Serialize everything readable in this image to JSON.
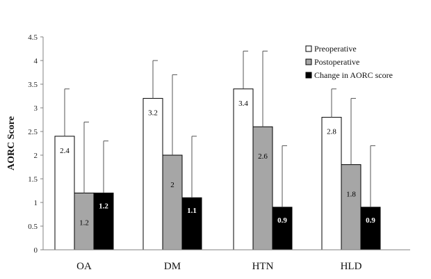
{
  "chart_data": {
    "type": "bar",
    "title": "",
    "xlabel": "",
    "ylabel": "AORC Score",
    "ylim": [
      0,
      4.5
    ],
    "yticks": [
      "0",
      "0.5",
      "1",
      "1.5",
      "2",
      "2.5",
      "3",
      "3.5",
      "4",
      "4.5"
    ],
    "categories": [
      "OA",
      "DM",
      "HTN",
      "HLD"
    ],
    "legend_position": "top-right",
    "grid": false,
    "series": [
      {
        "name": "Preoperative",
        "color": "#ffffff",
        "label_color": "#000000",
        "values": [
          2.4,
          3.2,
          3.4,
          2.8
        ],
        "labels": [
          "2.4",
          "3.2",
          "3.4",
          "2.8"
        ],
        "error_upper": [
          3.4,
          4.0,
          4.2,
          3.4
        ]
      },
      {
        "name": "Postoperative",
        "color": "#a6a6a6",
        "label_color": "#000000",
        "values": [
          1.2,
          2.0,
          2.6,
          1.8
        ],
        "labels": [
          "1.2",
          "2",
          "2.6",
          "1.8"
        ],
        "error_upper": [
          2.7,
          3.7,
          4.2,
          3.2
        ]
      },
      {
        "name": "Change in AORC score",
        "color": "#000000",
        "label_color": "#ffffff",
        "values": [
          1.2,
          1.1,
          0.9,
          0.9
        ],
        "labels": [
          "1.2",
          "1.1",
          "0.9",
          "0.9"
        ],
        "error_upper": [
          2.3,
          2.4,
          2.2,
          2.2
        ]
      }
    ]
  }
}
